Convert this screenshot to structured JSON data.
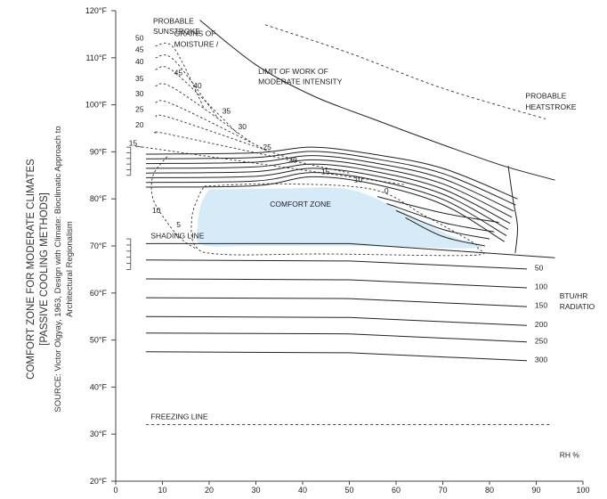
{
  "chart_data": {
    "type": "line",
    "title": "COMFORT ZONE FOR MODERATE CLIMATES",
    "subtitle": "[PASSIVE COOLING METHODS]",
    "source_line1": "SOURCE: Victor Olgyay, 1963, Design with Climate: Bioclimatic Approach to",
    "source_line2": "Architectural Regionalism",
    "xlabel": "RH %",
    "ylabel": "",
    "xlim": [
      0,
      100
    ],
    "ylim": [
      20,
      120
    ],
    "x_ticks": [
      "0",
      "10",
      "20",
      "30",
      "40",
      "50",
      "60",
      "70",
      "80",
      "90",
      "100"
    ],
    "y_ticks": [
      "20°F",
      "30°F",
      "40°F",
      "50°F",
      "60°F",
      "70°F",
      "80°F",
      "90°F",
      "100°F",
      "110°F",
      "120°F"
    ],
    "comfort_zone": {
      "label": "COMFORT ZONE",
      "fill": "#d6ebf7",
      "boundary": [
        [
          20,
          82
        ],
        [
          50,
          82
        ],
        [
          76,
          69.5
        ],
        [
          35,
          70
        ],
        [
          18,
          70
        ],
        [
          17.5,
          77
        ],
        [
          20,
          82
        ]
      ]
    },
    "shading_line": {
      "label": "SHADING LINE",
      "points": [
        [
          6.5,
          70.5
        ],
        [
          50,
          70.5
        ],
        [
          94,
          67.5
        ]
      ]
    },
    "freezing_line": {
      "label": "FREEZING LINE",
      "points": [
        [
          6.5,
          32
        ],
        [
          93,
          32
        ]
      ]
    },
    "sunstroke_line": {
      "label": "PROBABLE SUNSTROKE",
      "points": [
        [
          18,
          118
        ],
        [
          30,
          108.5
        ],
        [
          42,
          102
        ],
        [
          55,
          97
        ],
        [
          70,
          91.5
        ],
        [
          83,
          87
        ],
        [
          94,
          84
        ]
      ]
    },
    "heatstroke_line": {
      "label": "PROBABLE HEATSTROKE",
      "points": [
        [
          32,
          117
        ],
        [
          50,
          111
        ],
        [
          70,
          103.5
        ],
        [
          92,
          97
        ]
      ]
    },
    "limit_of_work": {
      "label": "LIMIT OF WORK OF MODERATE INTENSITY"
    },
    "grains_of_moisture": {
      "label": "GRAINS OF MOISTURE /",
      "values": [
        "50",
        "45",
        "40",
        "35",
        "30",
        "25",
        "20",
        "15",
        "10",
        "5",
        "0"
      ]
    },
    "radiation": {
      "label": "BTU/HR RADIATIO",
      "values": [
        "50",
        "100",
        "150",
        "200",
        "250",
        "300"
      ],
      "temps_at_50rh": [
        66.5,
        62.5,
        58.5,
        54.5,
        51,
        47
      ]
    },
    "wind_speeds": {
      "values": [
        88.5,
        86.5,
        85,
        83.3,
        82
      ],
      "lines": 10
    }
  }
}
